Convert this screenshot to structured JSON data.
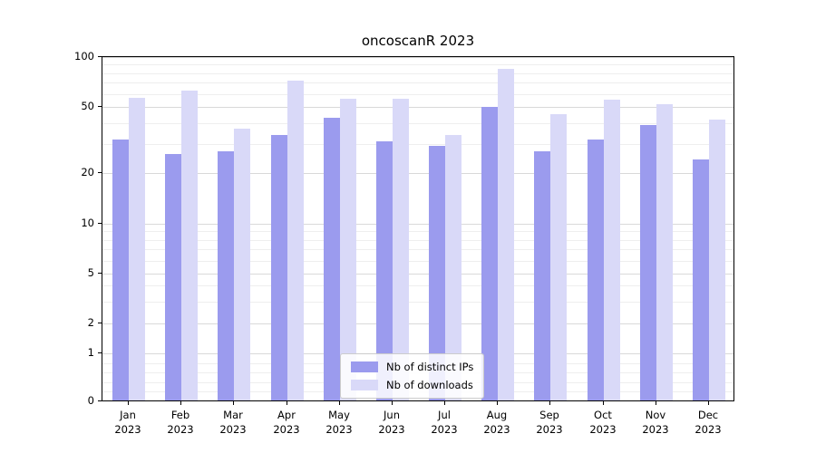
{
  "chart_data": {
    "type": "bar",
    "title": "oncoscanR 2023",
    "yscale": "symlog",
    "y_ticks": [
      0,
      1,
      2,
      5,
      10,
      20,
      50,
      100
    ],
    "ylim": [
      0,
      100
    ],
    "grid": true,
    "legend_position": "lower center",
    "categories": [
      "Jan",
      "Feb",
      "Mar",
      "Apr",
      "May",
      "Jun",
      "Jul",
      "Aug",
      "Sep",
      "Oct",
      "Nov",
      "Dec"
    ],
    "year": "2023",
    "series": [
      {
        "name": "Nb of distinct IPs",
        "color": "#9b9bee",
        "values": [
          32,
          26,
          27,
          34,
          43,
          31,
          29,
          50,
          27,
          32,
          39,
          24
        ]
      },
      {
        "name": "Nb of downloads",
        "color": "#d9d9f8",
        "values": [
          57,
          63,
          37,
          72,
          56,
          56,
          34,
          85,
          45,
          55,
          52,
          42
        ]
      }
    ]
  }
}
